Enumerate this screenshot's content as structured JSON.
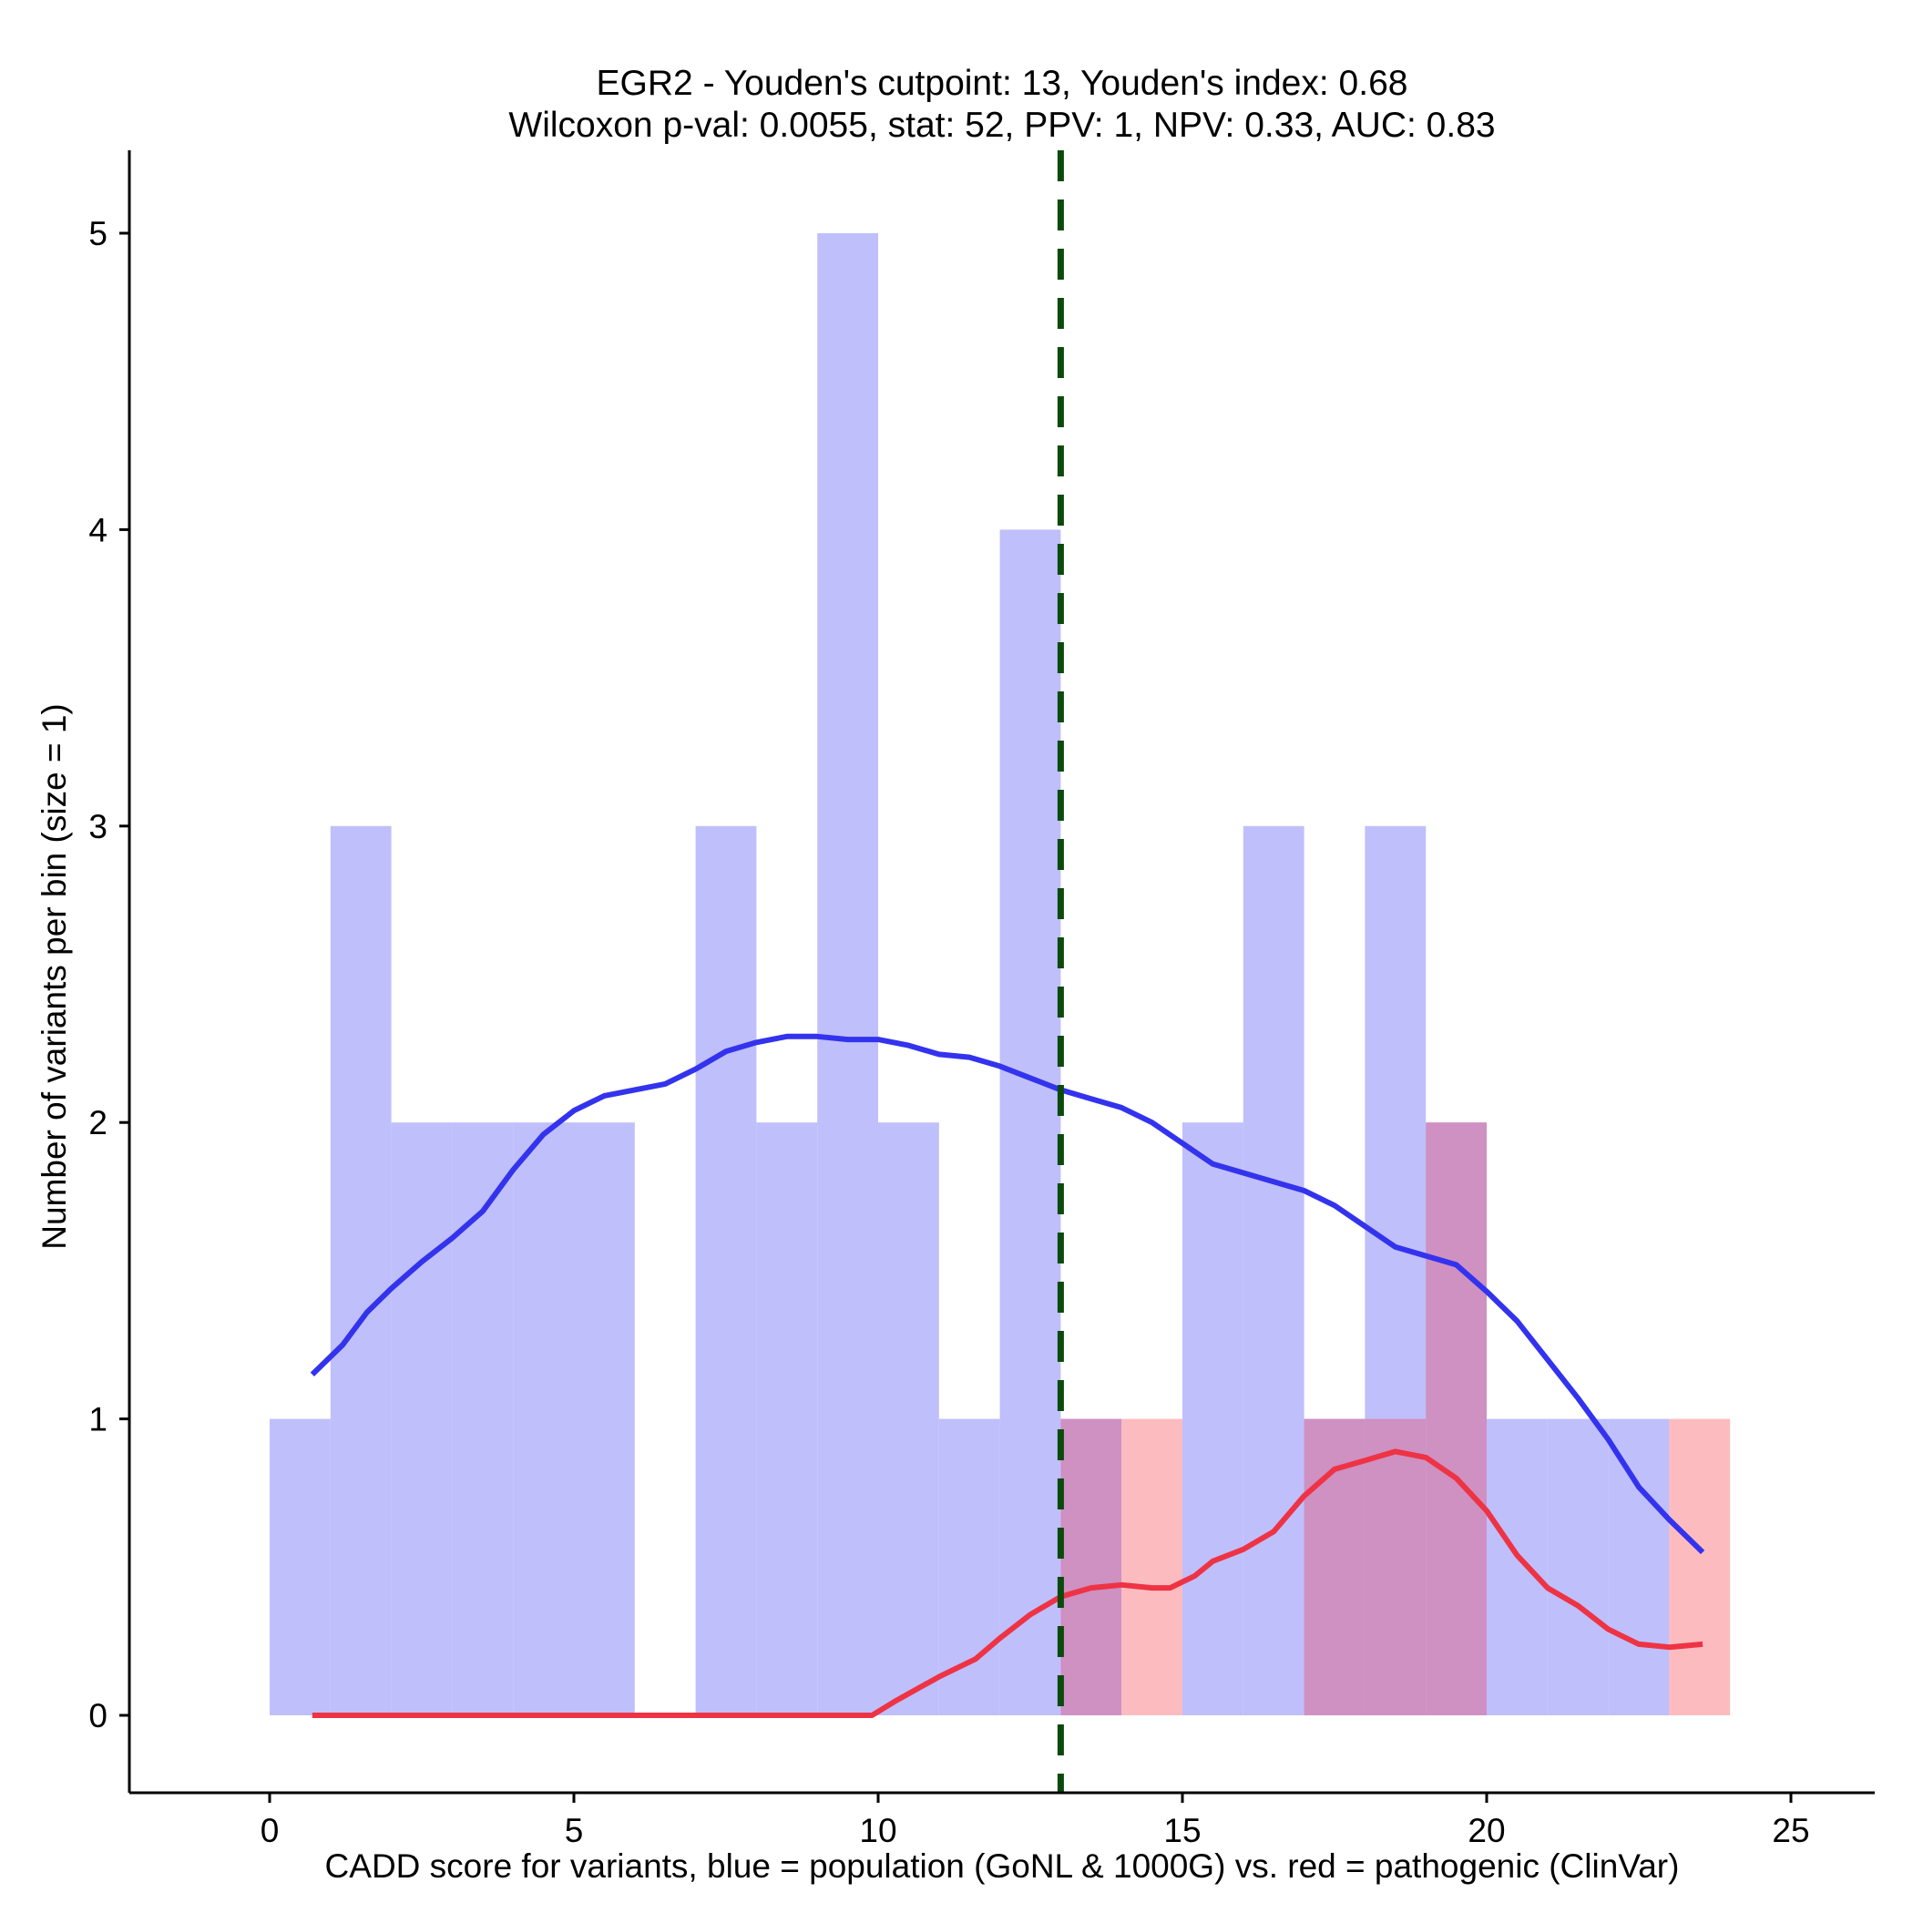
{
  "chart_data": {
    "type": "histogram",
    "title": "EGR2 - Youden's cutpoint: 13, Youden's index: 0.68",
    "subtitle": "Wilcoxon p-val: 0.0055, stat: 52, PPV: 1, NPV: 0.33, AUC: 0.83",
    "xlabel": "CADD score for variants, blue = population (GoNL & 1000G) vs. red = pathogenic (ClinVar)",
    "ylabel": "Number of variants per bin (size = 1)",
    "xlim": [
      -2.3,
      26.2
    ],
    "ylim": [
      -0.25,
      5.25
    ],
    "x_ticks": [
      0,
      5,
      10,
      15,
      20,
      25
    ],
    "y_ticks": [
      0,
      1,
      2,
      3,
      4,
      5
    ],
    "bin_size": 1,
    "cutpoint": 13,
    "colors": {
      "population_bar": "#bfbffc",
      "pathogenic_bar": "#fcbcbf",
      "overlap_bar": "#cf90c2",
      "population_line": "#3333ee",
      "pathogenic_line": "#ee3344",
      "cutpoint_line": "#0a4a0a",
      "axis": "#000000"
    },
    "series": [
      {
        "name": "population (GoNL & 1000G)",
        "bins": [
          {
            "x0": 0,
            "count": 1
          },
          {
            "x0": 1,
            "count": 3
          },
          {
            "x0": 2,
            "count": 2
          },
          {
            "x0": 3,
            "count": 2
          },
          {
            "x0": 4,
            "count": 2
          },
          {
            "x0": 5,
            "count": 2
          },
          {
            "x0": 6,
            "count": 0
          },
          {
            "x0": 7,
            "count": 3
          },
          {
            "x0": 8,
            "count": 2
          },
          {
            "x0": 9,
            "count": 5
          },
          {
            "x0": 10,
            "count": 2
          },
          {
            "x0": 11,
            "count": 1
          },
          {
            "x0": 12,
            "count": 4
          },
          {
            "x0": 13,
            "count": 1
          },
          {
            "x0": 14,
            "count": 0
          },
          {
            "x0": 15,
            "count": 2
          },
          {
            "x0": 16,
            "count": 3
          },
          {
            "x0": 17,
            "count": 1
          },
          {
            "x0": 18,
            "count": 3
          },
          {
            "x0": 19,
            "count": 2
          },
          {
            "x0": 20,
            "count": 1
          },
          {
            "x0": 21,
            "count": 1
          },
          {
            "x0": 22,
            "count": 1
          },
          {
            "x0": 23,
            "count": 0
          }
        ]
      },
      {
        "name": "pathogenic (ClinVar)",
        "bins": [
          {
            "x0": 13,
            "count": 1
          },
          {
            "x0": 14,
            "count": 1
          },
          {
            "x0": 17,
            "count": 1
          },
          {
            "x0": 18,
            "count": 1
          },
          {
            "x0": 19,
            "count": 2
          },
          {
            "x0": 23,
            "count": 1
          }
        ]
      }
    ],
    "density_lines": [
      {
        "name": "population density",
        "x": [
          0.7,
          1.2,
          1.6,
          2,
          2.5,
          3,
          3.5,
          4,
          4.5,
          5,
          5.5,
          6,
          6.5,
          7,
          7.5,
          8,
          8.5,
          9,
          9.5,
          10,
          10.5,
          11,
          11.5,
          12,
          12.5,
          13,
          13.5,
          14,
          14.5,
          15,
          15.5,
          16,
          16.5,
          17,
          17.5,
          18,
          18.5,
          19,
          19.5,
          20,
          20.5,
          21,
          21.5,
          22,
          22.5,
          23,
          23.55
        ],
        "y": [
          1.15,
          1.25,
          1.36,
          1.44,
          1.53,
          1.61,
          1.7,
          1.84,
          1.96,
          2.04,
          2.09,
          2.11,
          2.13,
          2.18,
          2.24,
          2.27,
          2.29,
          2.29,
          2.28,
          2.28,
          2.26,
          2.23,
          2.22,
          2.19,
          2.15,
          2.11,
          2.08,
          2.05,
          2.0,
          1.93,
          1.86,
          1.83,
          1.8,
          1.77,
          1.72,
          1.65,
          1.58,
          1.55,
          1.52,
          1.43,
          1.33,
          1.2,
          1.07,
          0.93,
          0.77,
          0.66,
          0.55
        ]
      },
      {
        "name": "pathogenic density",
        "x": [
          0.7,
          2,
          4,
          6,
          8,
          9.9,
          10.3,
          11,
          11.6,
          12,
          12.5,
          13,
          13.5,
          14,
          14.5,
          14.8,
          15.2,
          15.5,
          16,
          16.5,
          17,
          17.5,
          18,
          18.5,
          19,
          19.5,
          20,
          20.5,
          21,
          21.5,
          22,
          22.5,
          23,
          23.55
        ],
        "y": [
          0,
          0,
          0,
          0,
          0,
          0,
          0.05,
          0.13,
          0.19,
          0.26,
          0.34,
          0.4,
          0.43,
          0.44,
          0.43,
          0.43,
          0.47,
          0.52,
          0.56,
          0.62,
          0.74,
          0.83,
          0.86,
          0.89,
          0.87,
          0.8,
          0.69,
          0.54,
          0.43,
          0.37,
          0.29,
          0.24,
          0.23,
          0.24
        ]
      }
    ]
  }
}
